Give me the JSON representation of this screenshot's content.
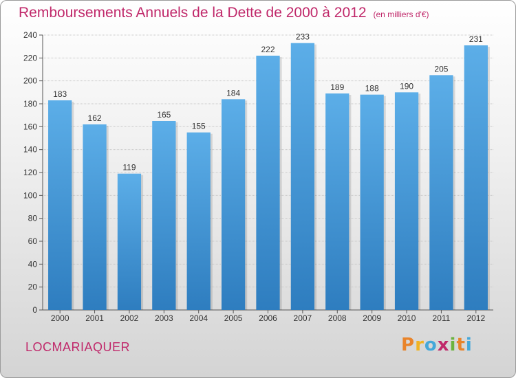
{
  "header": {
    "title": "Remboursements Annuels de la Dette de 2000 à 2012",
    "unit": "(en milliers d'€)"
  },
  "footer": {
    "location": "LOCMARIAQUER",
    "logo": "Proxiti"
  },
  "colors": {
    "title": "#c0286a",
    "bar_top": "#5caee8",
    "bar_bottom": "#2e7dbf"
  },
  "chart_data": {
    "type": "bar",
    "title": "Remboursements Annuels de la Dette de 2000 à 2012",
    "categories": [
      "2000",
      "2001",
      "2002",
      "2003",
      "2004",
      "2005",
      "2006",
      "2007",
      "2008",
      "2009",
      "2010",
      "2011",
      "2012"
    ],
    "values": [
      183,
      162,
      119,
      165,
      155,
      184,
      222,
      233,
      189,
      188,
      190,
      205,
      231
    ],
    "ylim": [
      0,
      240
    ],
    "yticks": [
      0,
      20,
      40,
      60,
      80,
      100,
      120,
      140,
      160,
      180,
      200,
      220,
      240
    ],
    "grid": true,
    "legend": "none"
  }
}
